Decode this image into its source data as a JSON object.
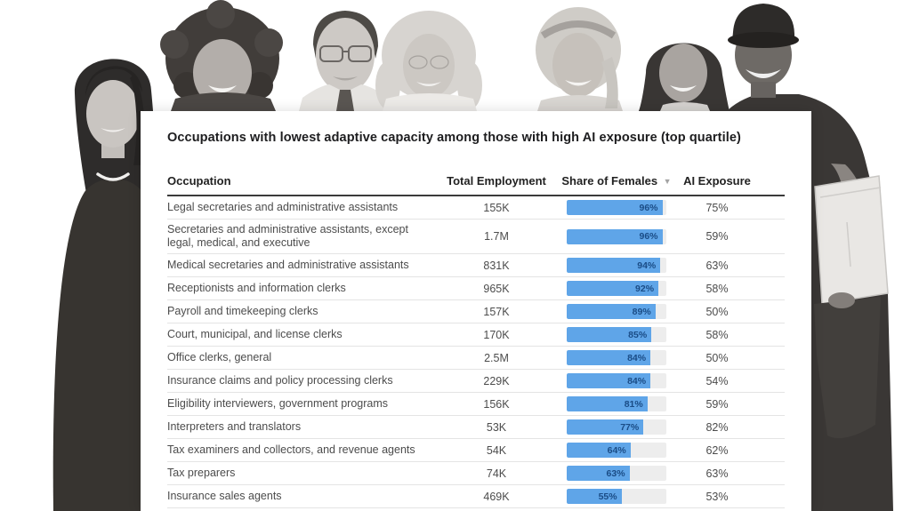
{
  "background": {
    "description": "black-and-white stock-photo collage of seven workers behind the data card",
    "people": [
      "businesswoman-dark-suit-long-hair",
      "smiling-woman-curly-afro-hair",
      "man-glasses-shirt-and-tie",
      "woman-light-wavy-hair-white-coat",
      "young-blonde-woman-headband",
      "smiling-woman-long-dark-hair",
      "delivery-man-cap-holding-box"
    ]
  },
  "chart_data": {
    "type": "table",
    "title": "Occupations with lowest adaptive capacity among those with high AI exposure (top quartile)",
    "columns": [
      "Occupation",
      "Total Employment",
      "Share of Females",
      "AI Exposure"
    ],
    "sorted_by": "Share of Females",
    "sort_direction": "desc",
    "sort_indicator": "▼",
    "bar_color": "#5fa5e8",
    "bar_track_color": "#ededed",
    "bar_label_color": "#1a4c86",
    "share_axis_range": [
      0,
      100
    ],
    "rows": [
      {
        "occupation": "Legal secretaries and administrative assistants",
        "total_employment": "155K",
        "share_of_females_pct": 96,
        "ai_exposure": "75%"
      },
      {
        "occupation": "Secretaries and administrative assistants, except legal, medical, and executive",
        "total_employment": "1.7M",
        "share_of_females_pct": 96,
        "ai_exposure": "59%"
      },
      {
        "occupation": "Medical secretaries and administrative assistants",
        "total_employment": "831K",
        "share_of_females_pct": 94,
        "ai_exposure": "63%"
      },
      {
        "occupation": "Receptionists and information clerks",
        "total_employment": "965K",
        "share_of_females_pct": 92,
        "ai_exposure": "58%"
      },
      {
        "occupation": "Payroll and timekeeping clerks",
        "total_employment": "157K",
        "share_of_females_pct": 89,
        "ai_exposure": "50%"
      },
      {
        "occupation": "Court, municipal, and license clerks",
        "total_employment": "170K",
        "share_of_females_pct": 85,
        "ai_exposure": "58%"
      },
      {
        "occupation": "Office clerks, general",
        "total_employment": "2.5M",
        "share_of_females_pct": 84,
        "ai_exposure": "50%"
      },
      {
        "occupation": "Insurance claims and policy processing clerks",
        "total_employment": "229K",
        "share_of_females_pct": 84,
        "ai_exposure": "54%"
      },
      {
        "occupation": "Eligibility interviewers, government programs",
        "total_employment": "156K",
        "share_of_females_pct": 81,
        "ai_exposure": "59%"
      },
      {
        "occupation": "Interpreters and translators",
        "total_employment": "53K",
        "share_of_females_pct": 77,
        "ai_exposure": "82%"
      },
      {
        "occupation": "Tax examiners and collectors, and revenue agents",
        "total_employment": "54K",
        "share_of_females_pct": 64,
        "ai_exposure": "62%"
      },
      {
        "occupation": "Tax preparers",
        "total_employment": "74K",
        "share_of_females_pct": 63,
        "ai_exposure": "63%"
      },
      {
        "occupation": "Insurance sales agents",
        "total_employment": "469K",
        "share_of_females_pct": 55,
        "ai_exposure": "53%"
      }
    ]
  }
}
